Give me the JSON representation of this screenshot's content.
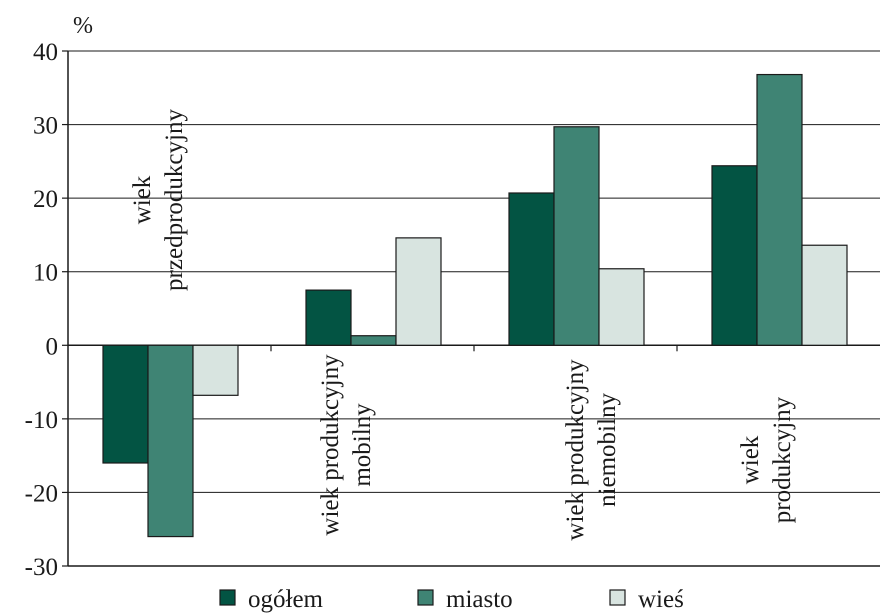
{
  "chart_data": {
    "type": "bar",
    "unit_label": "%",
    "ylim": [
      -30,
      40
    ],
    "yticks": [
      40,
      30,
      20,
      10,
      0,
      -10,
      -20,
      -30
    ],
    "grid": true,
    "legend_position": "bottom",
    "categories": [
      [
        "wiek",
        "przedprodukcyjny"
      ],
      [
        "wiek produkcyjny",
        "mobilny"
      ],
      [
        "wiek produkcyjny",
        "niemobilny"
      ],
      [
        "wiek",
        "produkcyjny"
      ]
    ],
    "series": [
      {
        "name": "ogółem",
        "color": "#035443",
        "values": [
          -16,
          7.5,
          20.7,
          24.4
        ]
      },
      {
        "name": "miasto",
        "color": "#3f8474",
        "values": [
          -26,
          1.3,
          29.7,
          36.8
        ]
      },
      {
        "name": "wieś",
        "color": "#d8e4e0",
        "values": [
          -6.8,
          14.6,
          10.4,
          13.6
        ]
      }
    ]
  }
}
